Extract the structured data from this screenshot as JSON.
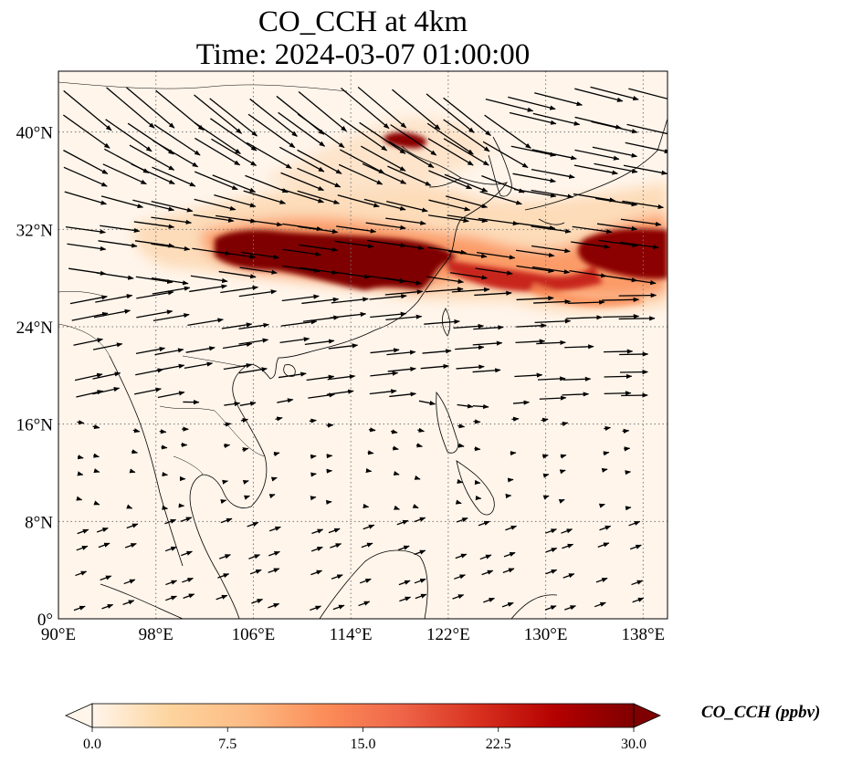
{
  "title_line1": "CO_CCH at 4km",
  "title_line2": "Time: 2024-03-07 01:00:00",
  "map": {
    "lon_range": [
      90,
      140
    ],
    "lat_range": [
      0,
      45
    ],
    "lon_ticks": [
      {
        "value": 90,
        "label": "90°E"
      },
      {
        "value": 98,
        "label": "98°E"
      },
      {
        "value": 106,
        "label": "106°E"
      },
      {
        "value": 114,
        "label": "114°E"
      },
      {
        "value": 122,
        "label": "122°E"
      },
      {
        "value": 130,
        "label": "130°E"
      },
      {
        "value": 138,
        "label": "138°E"
      }
    ],
    "lat_ticks": [
      {
        "value": 0,
        "label": "0°"
      },
      {
        "value": 8,
        "label": "8°N"
      },
      {
        "value": 16,
        "label": "16°N"
      },
      {
        "value": 24,
        "label": "24°N"
      },
      {
        "value": 32,
        "label": "32°N"
      },
      {
        "value": 40,
        "label": "40°N"
      }
    ],
    "gridlines": "dotted"
  },
  "colorbar": {
    "label": "CO_CCH (ppbv)",
    "min": 0,
    "max": 30,
    "ticks": [
      "0.0",
      "7.5",
      "15.0",
      "22.5",
      "30.0"
    ],
    "colors": [
      "#fff5eb",
      "#fdd49e",
      "#fdbb84",
      "#fc8d59",
      "#ef6548",
      "#d7301f",
      "#b30000",
      "#7f0000"
    ],
    "extend": "both"
  }
}
